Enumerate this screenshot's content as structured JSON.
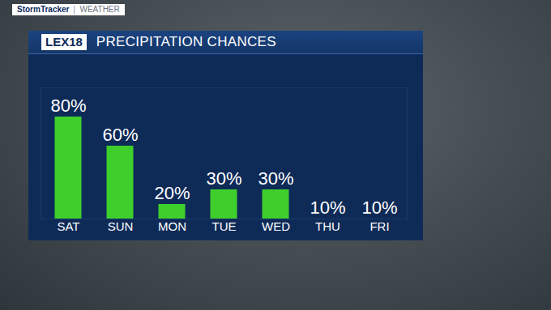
{
  "header": {
    "brand": "StormTracker",
    "section": "WEATHER",
    "logo": "LEX18"
  },
  "chart_data": {
    "type": "bar",
    "title": "PRECIPITATION CHANCES",
    "categories": [
      "SAT",
      "SUN",
      "MON",
      "TUE",
      "WED",
      "THU",
      "FRI"
    ],
    "values": [
      80,
      60,
      20,
      30,
      30,
      10,
      10
    ],
    "value_labels": [
      "80%",
      "60%",
      "20%",
      "30%",
      "30%",
      "10%",
      "10%"
    ],
    "color": "#3ecf2c",
    "ylim": [
      10,
      100
    ],
    "yticks": [],
    "data_labels": true,
    "tick_labels": "x",
    "grid": false
  }
}
